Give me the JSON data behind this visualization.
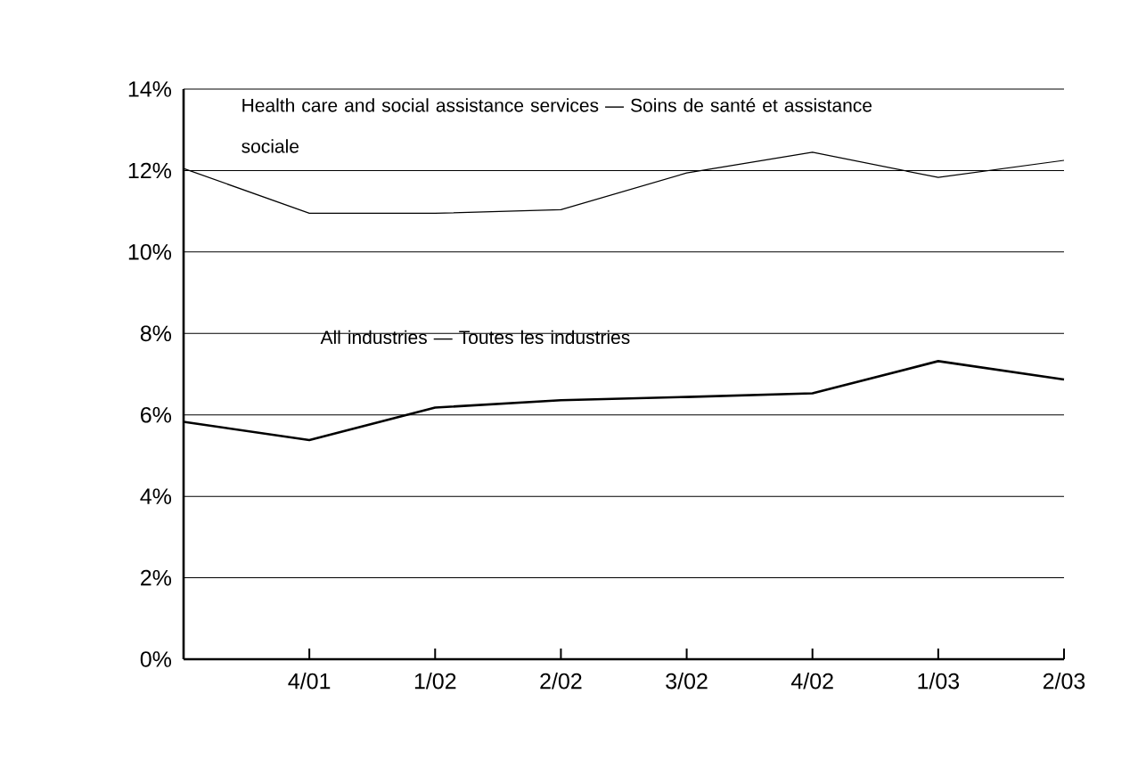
{
  "chart_data": {
    "type": "line",
    "categories": [
      null,
      "4/01",
      "1/02",
      "2/02",
      "3/02",
      "4/02",
      "1/03",
      "2/03"
    ],
    "series": [
      {
        "name": "Health care and social assistance services — Soins de santé et assistance sociale",
        "color": "#000000",
        "values": [
          12.05,
          10.95,
          10.95,
          11.04,
          11.94,
          12.45,
          11.83,
          12.25
        ]
      },
      {
        "name": "All industries — Toutes les industries",
        "color": "#000000",
        "values": [
          5.83,
          5.38,
          6.18,
          6.36,
          6.44,
          6.53,
          7.32,
          6.87
        ]
      }
    ],
    "ylim": [
      0,
      14
    ],
    "yticks": [
      {
        "value": 0,
        "label": "0%"
      },
      {
        "value": 2,
        "label": "2%"
      },
      {
        "value": 4,
        "label": "4%"
      },
      {
        "value": 6,
        "label": "6%"
      },
      {
        "value": 8,
        "label": "8%"
      },
      {
        "value": 10,
        "label": "10%"
      },
      {
        "value": 12,
        "label": "12%"
      },
      {
        "value": 14,
        "label": "14%"
      }
    ],
    "grid": "y",
    "legend": false,
    "marker": "none",
    "line_style": "solid"
  }
}
